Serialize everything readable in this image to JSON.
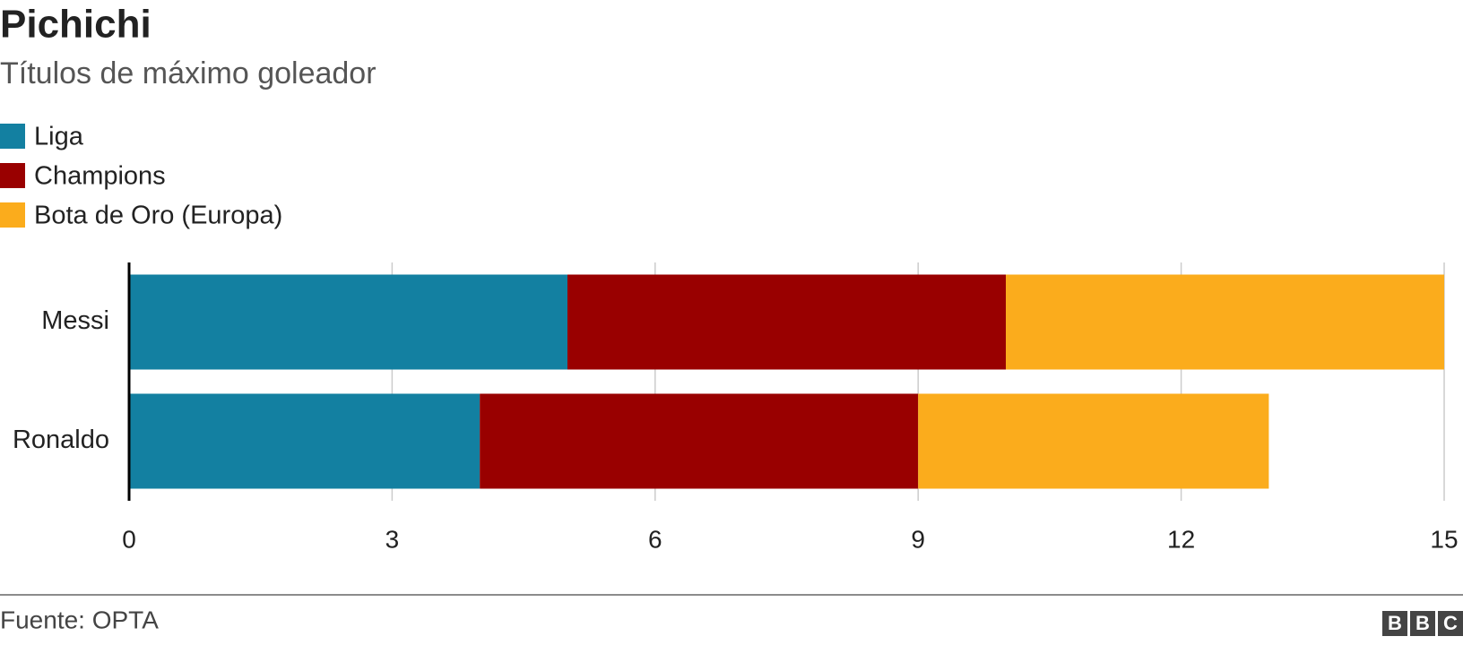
{
  "chart_data": {
    "type": "stacked-barh",
    "title": "Pichichi",
    "subtitle": "Títulos de máximo goleador",
    "categories": [
      "Messi",
      "Ronaldo"
    ],
    "series": [
      {
        "name": "Liga",
        "color": "#1380a1",
        "values": [
          5,
          4
        ]
      },
      {
        "name": "Champions",
        "color": "#990000",
        "values": [
          5,
          5
        ]
      },
      {
        "name": "Bota de Oro (Europa)",
        "color": "#fbac1c",
        "values": [
          5,
          4
        ]
      }
    ],
    "xlim": [
      0,
      15
    ],
    "xticks": [
      0,
      3,
      6,
      9,
      12,
      15
    ],
    "grid": true,
    "legend": "top-left",
    "source": "Fuente: OPTA",
    "logo": [
      "B",
      "B",
      "C"
    ]
  }
}
